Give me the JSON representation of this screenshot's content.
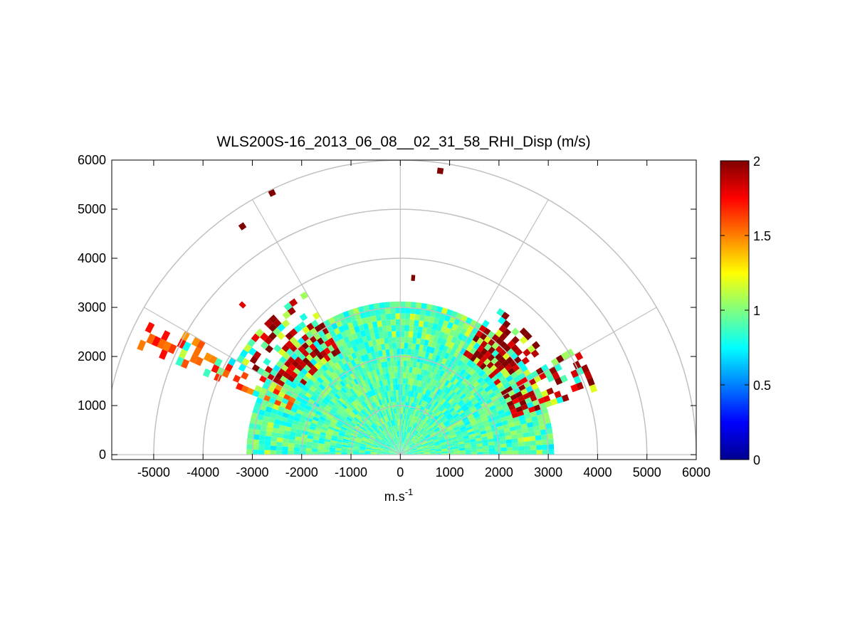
{
  "chart_data": {
    "type": "heatmap",
    "subtype": "polar-rhi-scan",
    "title": "WLS200S-16_2013_06_08__02_31_58_RHI_Disp (m/s)",
    "xlabel_base": "m.s",
    "xlabel_exp": "-1",
    "ylabel": "",
    "xlim": [
      -5850,
      6000
    ],
    "ylim": [
      -100,
      6000
    ],
    "x_ticks": [
      -5000,
      -4000,
      -3000,
      -2000,
      -1000,
      0,
      1000,
      2000,
      3000,
      4000,
      5000,
      6000
    ],
    "x_tick_labels": [
      "-5000",
      "-4000",
      "-3000",
      "-2000",
      "-1000",
      "0",
      "1000",
      "2000",
      "3000",
      "4000",
      "5000",
      "6000"
    ],
    "y_ticks": [
      0,
      1000,
      2000,
      3000,
      4000,
      5000,
      6000
    ],
    "y_tick_labels": [
      "0",
      "1000",
      "2000",
      "3000",
      "4000",
      "5000",
      "6000"
    ],
    "polar_grid": {
      "rings": [
        1000,
        2000,
        3000,
        4000,
        5000,
        6000
      ],
      "spokes_deg": [
        0,
        30,
        60,
        90,
        120,
        150,
        180
      ]
    },
    "colorbar": {
      "colormap": "jet",
      "range": [
        0,
        2
      ],
      "ticks": [
        0,
        0.5,
        1,
        1.5,
        2
      ],
      "tick_labels": [
        "0",
        "0.5",
        "1",
        "1.5",
        "2"
      ]
    },
    "scan": {
      "range_max_m": 3050,
      "typical_value": 0.9,
      "sectors": [
        {
          "from_deg": 18,
          "to_deg": 32,
          "range_to_m": 4200,
          "value_hint": 1.9
        },
        {
          "from_deg": 36,
          "to_deg": 58,
          "range_to_m": 3600,
          "value_hint": 1.95
        },
        {
          "from_deg": 120,
          "to_deg": 150,
          "range_to_m": 3800,
          "value_hint": 1.9
        },
        {
          "from_deg": 150,
          "to_deg": 158,
          "range_to_m": 5700,
          "value_hint": 1.6
        }
      ],
      "far_echoes": [
        {
          "x": 810,
          "y": 5780,
          "value": 2.0
        },
        {
          "x": -2600,
          "y": 5330,
          "value": 2.0
        },
        {
          "x": -3200,
          "y": 4650,
          "value": 2.0
        },
        {
          "x": 260,
          "y": 3600,
          "value": 2.0
        },
        {
          "x": -3200,
          "y": 3050,
          "value": 1.8
        }
      ]
    }
  }
}
